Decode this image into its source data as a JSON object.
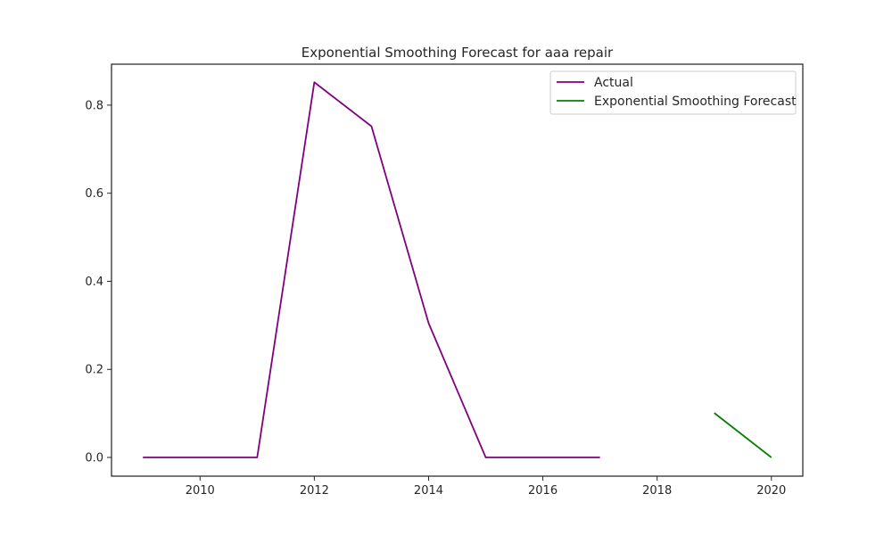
{
  "chart_data": {
    "type": "line",
    "title": "Exponential Smoothing Forecast for aaa repair",
    "xlabel": "",
    "ylabel": "",
    "xlim": [
      2008.45,
      2020.55
    ],
    "ylim": [
      -0.0425,
      0.893
    ],
    "xticks": [
      2010,
      2012,
      2014,
      2016,
      2018,
      2020
    ],
    "yticks": [
      0.0,
      0.2,
      0.4,
      0.6,
      0.8
    ],
    "xtick_labels": [
      "2010",
      "2012",
      "2014",
      "2016",
      "2018",
      "2020"
    ],
    "ytick_labels": [
      "0.0",
      "0.2",
      "0.4",
      "0.6",
      "0.8"
    ],
    "grid": false,
    "legend_position": "top-right",
    "series": [
      {
        "name": "Actual",
        "color": "#800080",
        "x": [
          2009,
          2010,
          2011,
          2012,
          2013,
          2014,
          2015,
          2016,
          2017
        ],
        "y": [
          0.0,
          0.0,
          0.0,
          0.852,
          0.752,
          0.305,
          0.0,
          0.0,
          0.0
        ]
      },
      {
        "name": "Exponential Smoothing Forecast",
        "color": "#008000",
        "x": [
          2019,
          2020
        ],
        "y": [
          0.101,
          0.0
        ]
      }
    ]
  }
}
